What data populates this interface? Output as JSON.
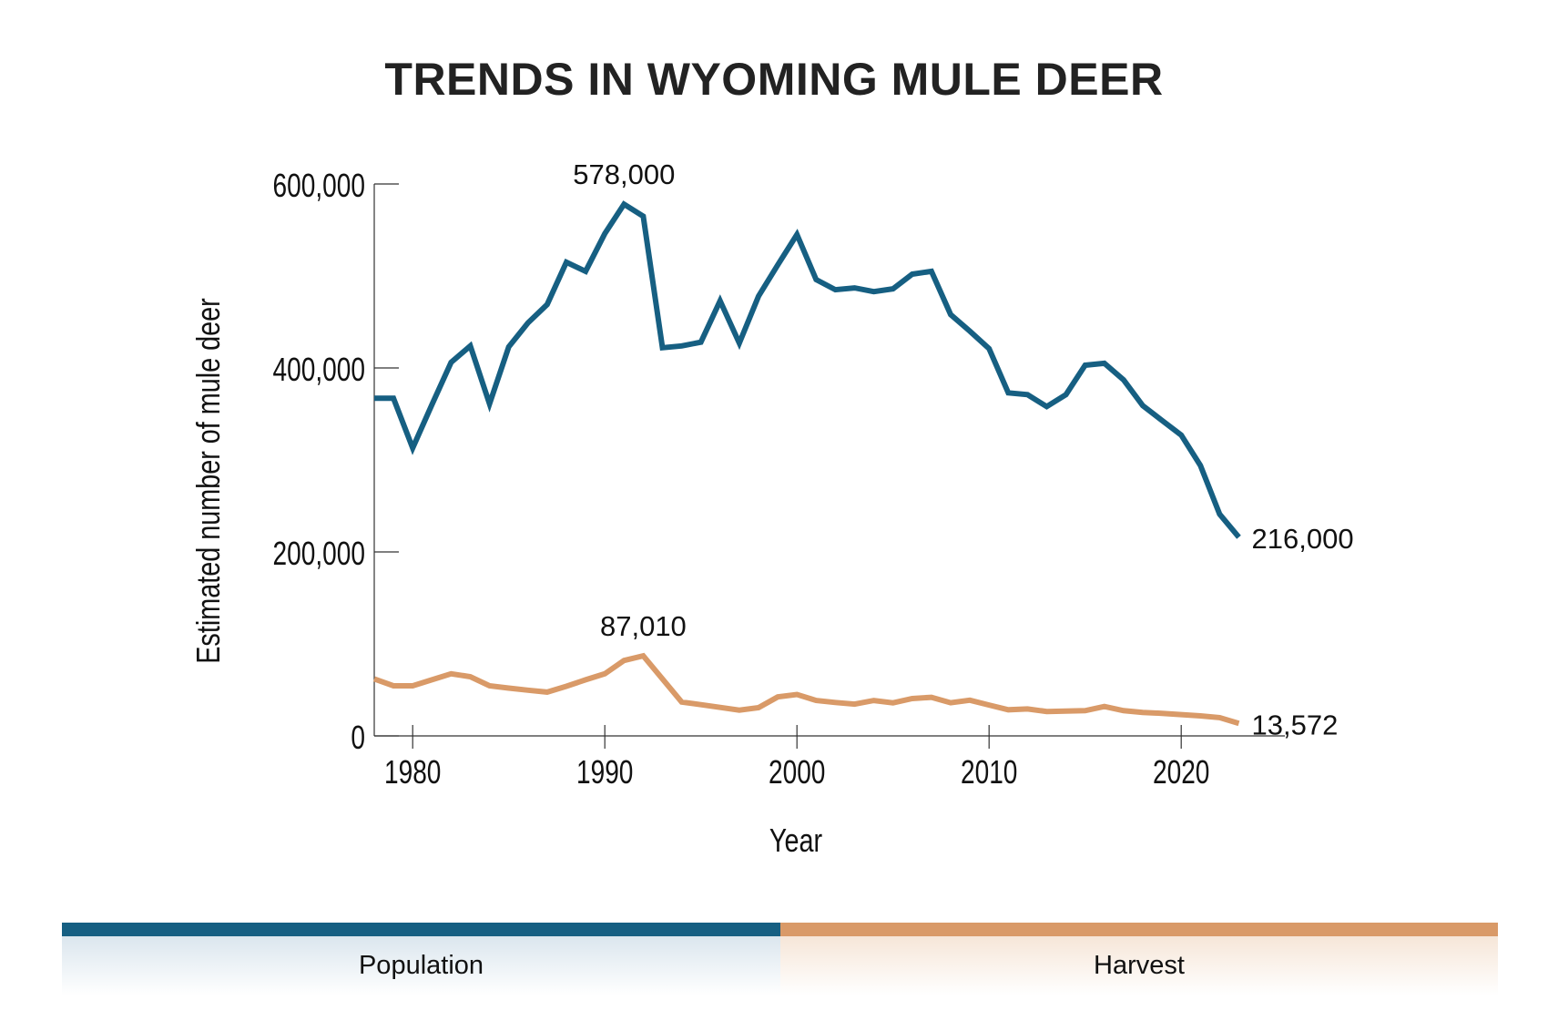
{
  "chart_data": {
    "type": "line",
    "title": "TRENDS IN WYOMING MULE DEER",
    "xlabel": "Year",
    "ylabel": "Estimated number of mule deer",
    "xlim": [
      1978,
      2025.4
    ],
    "ylim": [
      0,
      600000
    ],
    "x_ticks": [
      1980,
      1990,
      2000,
      2010,
      2020
    ],
    "x_tick_labels": [
      "1980",
      "1990",
      "2000",
      "2010",
      "2020"
    ],
    "y_ticks": [
      0,
      200000,
      400000,
      600000
    ],
    "y_tick_labels": [
      "0",
      "200,000",
      "400,000",
      "600,000"
    ],
    "grid": false,
    "legend_placement": "bottom",
    "x": [
      1978,
      1979,
      1980,
      1981,
      1982,
      1983,
      1984,
      1985,
      1986,
      1987,
      1988,
      1989,
      1990,
      1991,
      1992,
      1993,
      1994,
      1995,
      1996,
      1997,
      1998,
      1999,
      2000,
      2001,
      2002,
      2003,
      2004,
      2005,
      2006,
      2007,
      2008,
      2009,
      2010,
      2011,
      2012,
      2013,
      2014,
      2015,
      2016,
      2017,
      2018,
      2019,
      2020,
      2021,
      2022,
      2023
    ],
    "series": [
      {
        "name": "Population",
        "color": "#165f82",
        "values": [
          367000,
          367000,
          313000,
          360000,
          406000,
          424000,
          361000,
          423000,
          449000,
          469000,
          515000,
          505000,
          546000,
          578000,
          565000,
          422000,
          424000,
          428000,
          473000,
          427000,
          478000,
          512000,
          545000,
          496000,
          485000,
          487000,
          483000,
          486000,
          502000,
          505000,
          458000,
          440000,
          421000,
          373000,
          371000,
          358000,
          371000,
          403000,
          405000,
          387000,
          359000,
          343000,
          327000,
          294000,
          241000,
          216000
        ],
        "annotations": [
          {
            "x": 1991,
            "label": "578,000"
          },
          {
            "x": 2023,
            "label": "216,000"
          }
        ]
      },
      {
        "name": "Harvest",
        "color": "#d99a68",
        "values": [
          62000,
          54500,
          54500,
          61000,
          67500,
          64400,
          54500,
          52000,
          49700,
          47600,
          54000,
          61000,
          67500,
          82000,
          87010,
          62000,
          36800,
          34000,
          31000,
          28000,
          30700,
          42400,
          45000,
          38500,
          36300,
          34600,
          38500,
          35900,
          40600,
          42000,
          36000,
          38800,
          33600,
          28400,
          29300,
          26500,
          27000,
          27400,
          32000,
          27400,
          25500,
          24600,
          23200,
          21800,
          19900,
          13572
        ],
        "annotations": [
          {
            "x": 1992,
            "label": "87,010"
          },
          {
            "x": 2023,
            "label": "13,572"
          }
        ]
      }
    ]
  }
}
